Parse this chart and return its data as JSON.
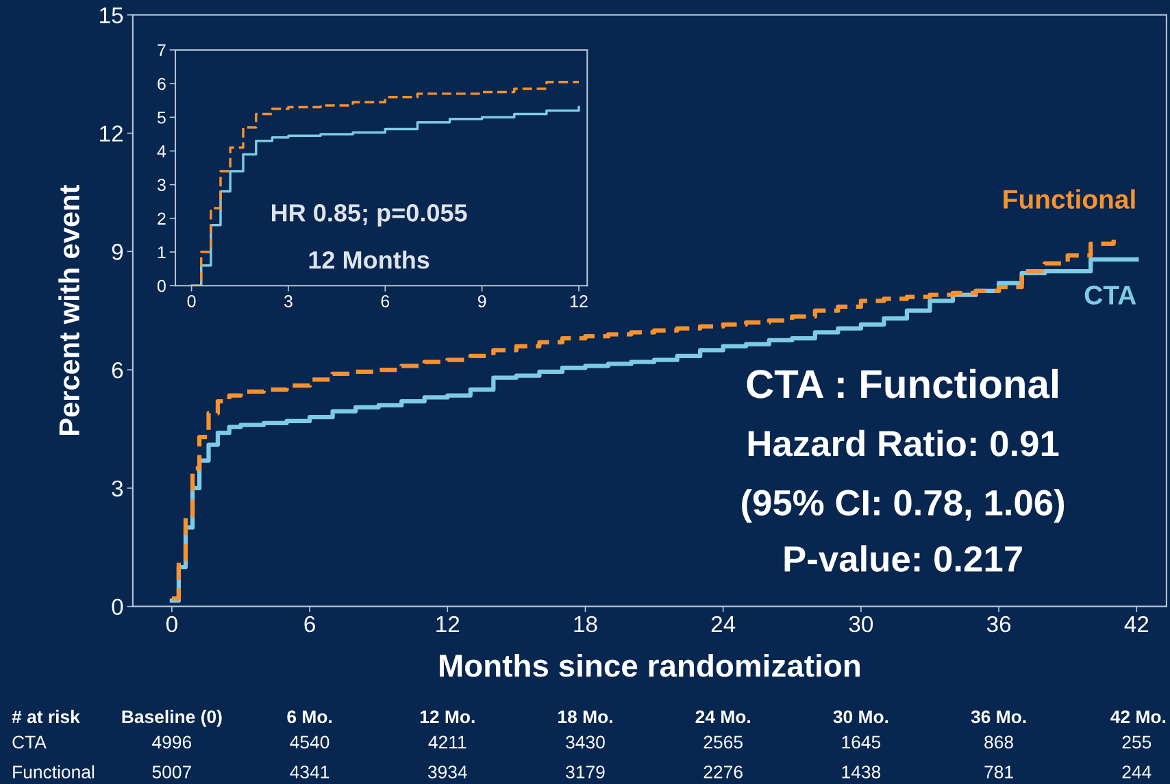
{
  "chart_data": [
    {
      "type": "step",
      "xlabel": "Months since randomization",
      "ylabel": "Percent with event",
      "xlim": [
        -1.7,
        43.3
      ],
      "ylim": [
        0,
        15
      ],
      "xticks": [
        0,
        6,
        12,
        18,
        24,
        30,
        36,
        42
      ],
      "yticks": [
        0,
        3,
        6,
        9,
        12,
        15
      ],
      "grid": false,
      "annotations": [
        "CTA : Functional",
        "Hazard Ratio: 0.91",
        "(95% CI: 0.78, 1.06)",
        "P-value: 0.217",
        "# at risk",
        "Baseline (0)",
        "6 Mo.",
        "12 Mo.",
        "18 Mo.",
        "24 Mo.",
        "30 Mo.",
        "36 Mo.",
        "42 Mo.",
        "CTA",
        "4996",
        "4540",
        "4211",
        "3430",
        "2565",
        "1645",
        "868",
        "255",
        "Functional",
        "5007",
        "4341",
        "3934",
        "3179",
        "2276",
        "1438",
        "781",
        "244"
      ],
      "series": [
        {
          "name": "CTA",
          "color": "#7ecbe6",
          "line_style": "solid",
          "x": [
            0,
            0.3,
            0.6,
            0.9,
            1.2,
            1.6,
            2,
            2.5,
            3,
            4,
            5,
            6,
            7,
            8,
            9,
            10,
            11,
            12,
            13,
            14,
            15,
            16,
            17,
            18,
            19,
            20,
            21,
            22,
            23,
            24,
            25,
            26,
            27,
            28,
            29,
            30,
            31,
            32,
            33,
            34,
            35,
            36,
            37,
            38,
            39,
            40,
            42
          ],
          "values": [
            0.15,
            1,
            2,
            3,
            3.7,
            4.1,
            4.4,
            4.55,
            4.6,
            4.65,
            4.7,
            4.8,
            4.95,
            5.05,
            5.1,
            5.2,
            5.3,
            5.35,
            5.5,
            5.8,
            5.85,
            5.95,
            6.05,
            6.1,
            6.15,
            6.2,
            6.25,
            6.35,
            6.5,
            6.6,
            6.65,
            6.75,
            6.8,
            6.95,
            7.05,
            7.15,
            7.3,
            7.5,
            7.75,
            7.9,
            8.0,
            8.2,
            8.45,
            8.5,
            8.5,
            8.8,
            8.8
          ]
        },
        {
          "name": "Functional",
          "color": "#f7922e",
          "line_style": "dashed",
          "x": [
            0,
            0.3,
            0.6,
            0.9,
            1.2,
            1.6,
            2,
            2.5,
            3,
            4,
            5,
            6,
            7,
            8,
            9,
            10,
            11,
            12,
            13,
            14,
            15,
            16,
            17,
            18,
            19,
            20,
            21,
            22,
            23,
            24,
            25,
            26,
            27,
            28,
            29,
            30,
            31,
            32,
            33,
            34,
            35,
            36,
            37,
            38,
            39,
            40,
            41
          ],
          "values": [
            0.2,
            1.2,
            2.3,
            3.5,
            4.3,
            4.9,
            5.2,
            5.35,
            5.45,
            5.5,
            5.6,
            5.75,
            5.9,
            5.95,
            6.0,
            6.1,
            6.2,
            6.25,
            6.35,
            6.5,
            6.6,
            6.7,
            6.8,
            6.85,
            6.9,
            6.95,
            7.0,
            7.05,
            7.1,
            7.15,
            7.2,
            7.25,
            7.35,
            7.5,
            7.6,
            7.75,
            7.8,
            7.85,
            7.9,
            7.95,
            8.0,
            8.1,
            8.5,
            8.7,
            8.9,
            9.2,
            9.3
          ]
        }
      ]
    },
    {
      "type": "step",
      "xlim": [
        -0.5,
        12.26
      ],
      "ylim": [
        0,
        7
      ],
      "xticks": [
        0,
        3,
        6,
        9,
        12
      ],
      "yticks": [
        0,
        1,
        2,
        3,
        4,
        5,
        6,
        7
      ],
      "grid": false,
      "annotations": [
        "HR 0.85; p=0.055",
        "12 Months"
      ],
      "series": [
        {
          "color": "#7ecbe6",
          "line_style": "solid",
          "x": [
            0,
            0.3,
            0.6,
            0.9,
            1.2,
            1.6,
            2,
            2.5,
            3,
            4,
            5,
            6,
            7,
            8,
            9,
            10,
            11,
            12
          ],
          "values": [
            0,
            0.6,
            1.8,
            2.8,
            3.4,
            3.9,
            4.3,
            4.4,
            4.45,
            4.5,
            4.55,
            4.65,
            4.85,
            4.95,
            5.0,
            5.1,
            5.2,
            5.3
          ]
        },
        {
          "color": "#f7922e",
          "line_style": "dashed",
          "x": [
            0,
            0.3,
            0.6,
            0.9,
            1.2,
            1.6,
            2,
            2.5,
            3,
            4,
            5,
            6,
            7,
            8,
            9,
            10,
            11,
            12
          ],
          "values": [
            0,
            1,
            2.3,
            3.4,
            4.1,
            4.7,
            5.1,
            5.25,
            5.3,
            5.35,
            5.45,
            5.6,
            5.7,
            5.7,
            5.75,
            5.85,
            6.05,
            6.05
          ]
        }
      ]
    }
  ]
}
